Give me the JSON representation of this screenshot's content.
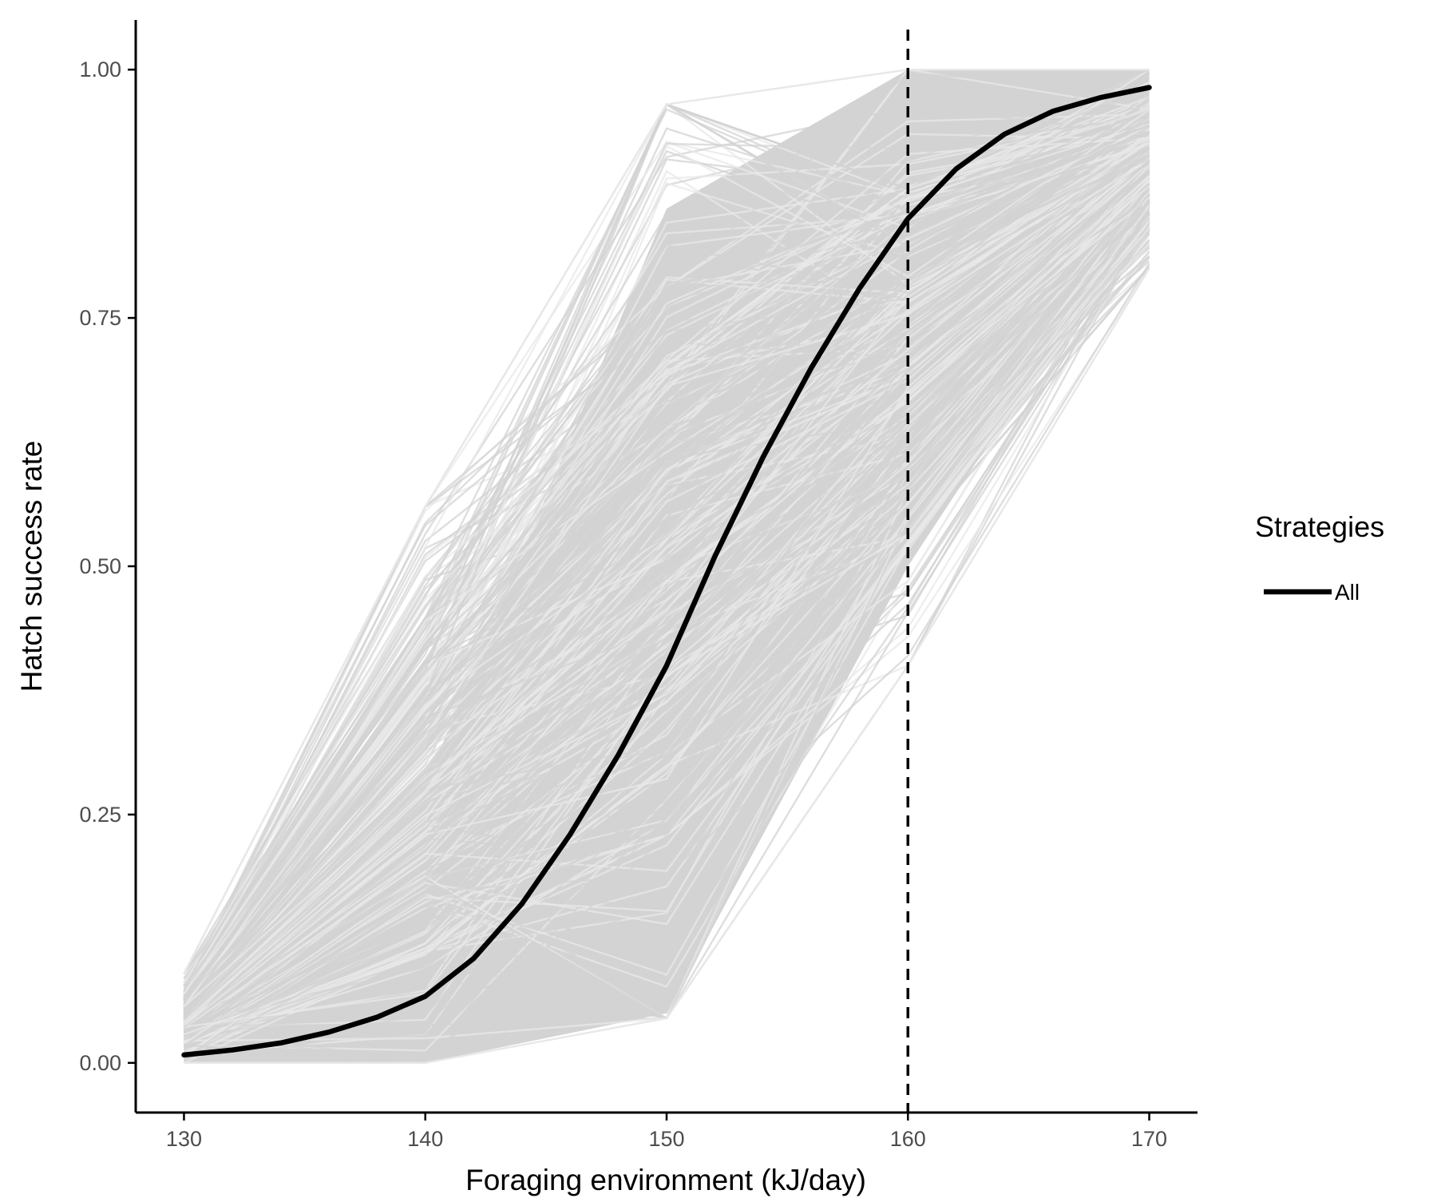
{
  "chart_data": {
    "type": "line",
    "title": "",
    "xlabel": "Foraging environment (kJ/day)",
    "ylabel": "Hatch success rate",
    "xlim": [
      128,
      172
    ],
    "ylim": [
      -0.05,
      1.05
    ],
    "x_ticks": [
      "130",
      "140",
      "150",
      "160",
      "170"
    ],
    "y_ticks": [
      "0.00",
      "0.25",
      "0.50",
      "0.75",
      "1.00"
    ],
    "grid": false,
    "legend": {
      "title": "Strategies",
      "position": "right",
      "entries": [
        {
          "label": "All",
          "color": "#000000"
        }
      ]
    },
    "reference_line": {
      "x": 160,
      "style": "dashed",
      "color": "#000000"
    },
    "background_band": {
      "description_color": "#d3d3d3",
      "x": [
        130,
        140,
        150,
        160,
        170
      ],
      "lower": [
        0.0,
        0.0,
        0.045,
        0.4,
        0.8
      ],
      "upper": [
        0.09,
        0.56,
        0.965,
        1.0,
        1.0
      ],
      "core_lower": [
        0.0,
        0.0,
        0.05,
        0.5,
        0.87
      ],
      "core_upper": [
        0.04,
        0.28,
        0.86,
        1.0,
        1.0
      ]
    },
    "series": [
      {
        "name": "All",
        "color": "#000000",
        "x": [
          130,
          132,
          134,
          136,
          138,
          140,
          142,
          144,
          146,
          148,
          150,
          152,
          154,
          156,
          158,
          160,
          162,
          164,
          166,
          168,
          170
        ],
        "values": [
          0.008,
          0.013,
          0.02,
          0.031,
          0.046,
          0.067,
          0.105,
          0.16,
          0.23,
          0.31,
          0.4,
          0.51,
          0.61,
          0.7,
          0.78,
          0.85,
          0.9,
          0.935,
          0.958,
          0.972,
          0.982
        ]
      }
    ]
  },
  "colors": {
    "background": "#ffffff",
    "bundle": "#d3d3d3",
    "bundle_light": "#e8e8e8",
    "axis": "#000000",
    "tick_text": "#4d4d4d"
  }
}
